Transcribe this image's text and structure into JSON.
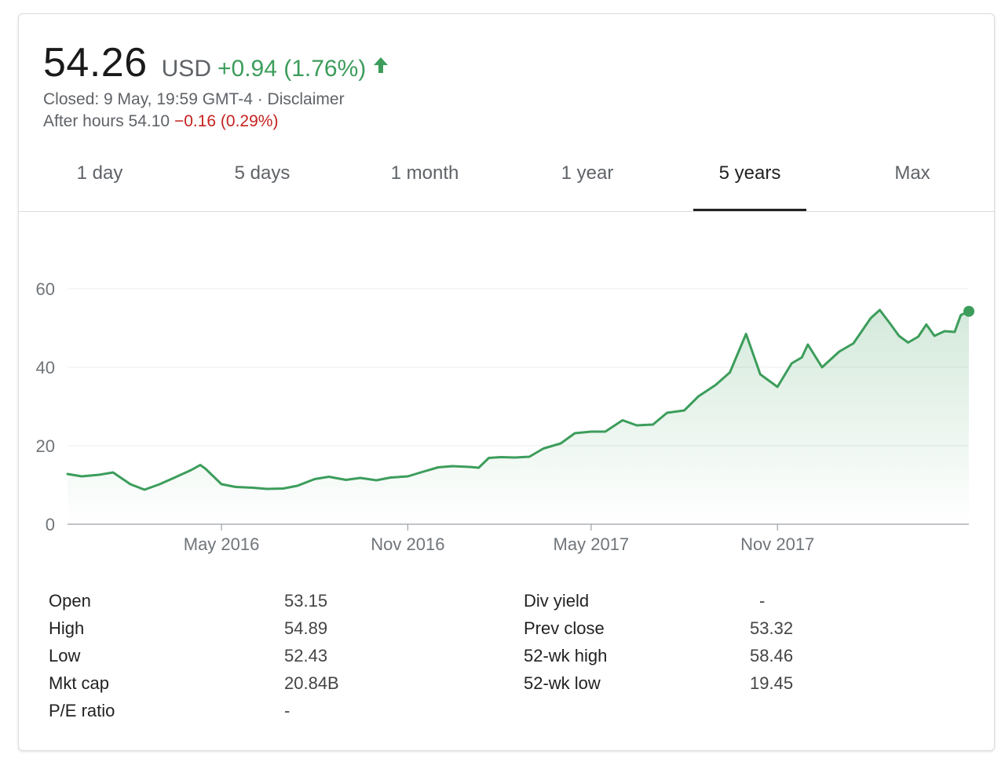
{
  "quote": {
    "price": "54.26",
    "currency": "USD",
    "change": "+0.94 (1.76%)",
    "closed": "Closed: 9 May, 19:59 GMT-4 · Disclaimer",
    "after_hours_label": "After hours 54.10",
    "after_hours_change": "−0.16 (0.29%)",
    "up_color": "#3c9d5b",
    "down_color": "#c5221f"
  },
  "tabs": [
    {
      "label": "1 day",
      "active": false
    },
    {
      "label": "5 days",
      "active": false
    },
    {
      "label": "1 month",
      "active": false
    },
    {
      "label": "1 year",
      "active": false
    },
    {
      "label": "5 years",
      "active": true
    },
    {
      "label": "Max",
      "active": false
    }
  ],
  "chart_data": {
    "type": "line",
    "x": [
      "2015-12-01",
      "2015-12-15",
      "2016-01-01",
      "2016-01-15",
      "2016-02-01",
      "2016-02-15",
      "2016-03-01",
      "2016-03-15",
      "2016-04-01",
      "2016-04-10",
      "2016-04-15",
      "2016-05-01",
      "2016-05-15",
      "2016-06-01",
      "2016-06-15",
      "2016-07-01",
      "2016-07-15",
      "2016-08-01",
      "2016-08-15",
      "2016-09-01",
      "2016-09-15",
      "2016-10-01",
      "2016-10-15",
      "2016-11-01",
      "2016-11-15",
      "2016-12-01",
      "2016-12-15",
      "2017-01-01",
      "2017-01-10",
      "2017-01-20",
      "2017-02-01",
      "2017-02-15",
      "2017-03-01",
      "2017-03-15",
      "2017-04-01",
      "2017-04-15",
      "2017-05-01",
      "2017-05-15",
      "2017-06-01",
      "2017-06-15",
      "2017-07-01",
      "2017-07-15",
      "2017-08-01",
      "2017-08-15",
      "2017-09-01",
      "2017-09-15",
      "2017-10-01",
      "2017-10-15",
      "2017-11-01",
      "2017-11-15",
      "2017-11-25",
      "2017-12-01",
      "2017-12-15",
      "2018-01-01",
      "2018-01-15",
      "2018-02-01",
      "2018-02-10",
      "2018-02-20",
      "2018-03-01",
      "2018-03-10",
      "2018-03-20",
      "2018-03-28",
      "2018-04-05",
      "2018-04-15",
      "2018-04-25",
      "2018-05-01",
      "2018-05-09"
    ],
    "y": [
      12.8,
      12.2,
      12.6,
      13.2,
      10.2,
      8.8,
      10.2,
      11.8,
      13.8,
      15.1,
      14.2,
      10.2,
      9.5,
      9.3,
      9.0,
      9.1,
      9.8,
      11.5,
      12.1,
      11.3,
      11.8,
      11.2,
      11.9,
      12.2,
      13.3,
      14.5,
      14.8,
      14.6,
      14.4,
      16.9,
      17.1,
      17.0,
      17.2,
      19.3,
      20.6,
      23.2,
      23.6,
      23.6,
      26.5,
      25.2,
      25.4,
      28.4,
      29.0,
      32.6,
      35.5,
      38.7,
      48.5,
      38.2,
      35.0,
      41.0,
      42.5,
      45.8,
      40.0,
      44.0,
      46.1,
      52.5,
      54.6,
      51.2,
      48.0,
      46.3,
      47.8,
      50.9,
      48.0,
      49.2,
      49.0,
      53.3,
      54.26
    ],
    "x_ticks": [
      "May 2016",
      "Nov 2016",
      "May 2017",
      "Nov 2017"
    ],
    "x_tick_dates": [
      "2016-05-01",
      "2016-11-01",
      "2017-05-01",
      "2017-11-01"
    ],
    "y_ticks": [
      "0",
      "20",
      "40",
      "60"
    ],
    "ylim": [
      0,
      60
    ],
    "xlim": [
      "2015-12-01",
      "2018-05-09"
    ],
    "grid": "horizontal",
    "line_color": "#3c9d5b"
  },
  "stats": {
    "left": [
      {
        "label": "Open",
        "value": "53.15"
      },
      {
        "label": "High",
        "value": "54.89"
      },
      {
        "label": "Low",
        "value": "52.43"
      },
      {
        "label": "Mkt cap",
        "value": "20.84B"
      },
      {
        "label": "P/E ratio",
        "value": "-"
      }
    ],
    "right": [
      {
        "label": "Div yield",
        "value": "-"
      },
      {
        "label": "Prev close",
        "value": "53.32"
      },
      {
        "label": "52-wk high",
        "value": "58.46"
      },
      {
        "label": "52-wk low",
        "value": "19.45"
      }
    ]
  }
}
